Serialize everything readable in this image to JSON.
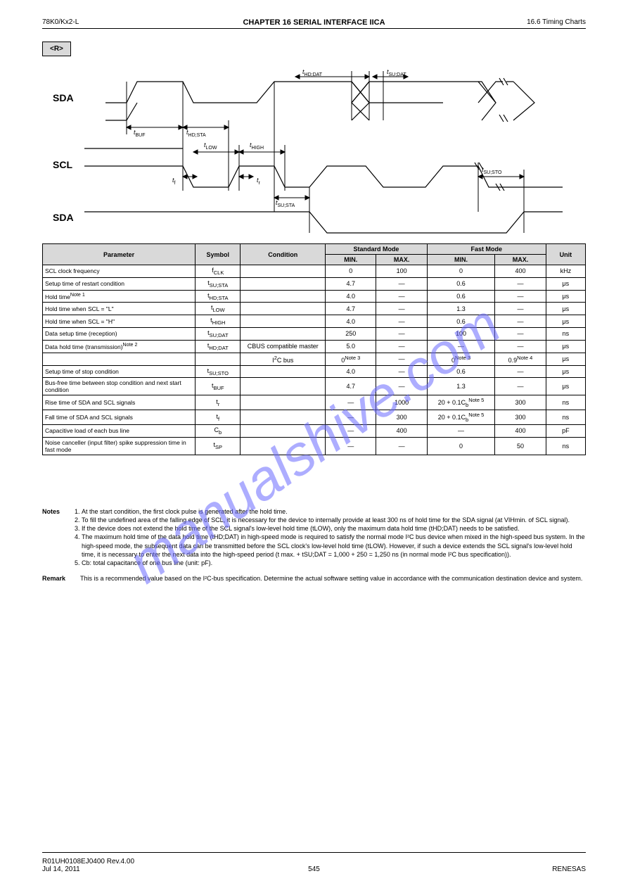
{
  "header": {
    "left": "78K0/Kx2-L",
    "center": "CHAPTER 16 SERIAL INTERFACE IICA",
    "right": "16.6 Timing Charts"
  },
  "footer": {
    "left": "R01UH0108EJ0400 Rev.4.00",
    "center": "",
    "right": "RENESAS",
    "sub": "Jul 14, 2011"
  },
  "pagenum": "545",
  "badge": "<R>",
  "watermark": "manualshive.com",
  "diagram": {
    "bg": "#ffffff",
    "stroke": "#000000",
    "labels": {
      "sda1": "SDA",
      "scl": "SCL",
      "sda2": "SDA",
      "tbuf": "t",
      "tbuf_sub": "BUF",
      "thdsta": "t",
      "thdsta_sub": "HD;STA",
      "tlow": "t",
      "tlow_sub": "LOW",
      "thigh": "t",
      "thigh_sub": "HIGH",
      "tf": "t",
      "tf_sub": "f",
      "tr": "t",
      "tr_sub": "r",
      "thddat": "t",
      "thddat_sub": "HD;DAT",
      "tsudat": "t",
      "tsudat_sub": "SU;DAT",
      "tsusta": "t",
      "tsusta_sub": "SU;STA",
      "tsusto": "t",
      "tsusto_sub": "SU;STO"
    }
  },
  "table": {
    "header": {
      "param": "Parameter",
      "sym": "Symbol",
      "cond": "Condition",
      "std": "Standard Mode",
      "fast": "Fast Mode",
      "unit": "Unit",
      "min": "MIN.",
      "max": "MAX."
    },
    "rows": [
      {
        "p": "SCL clock frequency",
        "s_html": "f<sub>CLK</sub>",
        "c": "",
        "smin": "0",
        "smax": "100",
        "fmin": "0",
        "fmax": "400",
        "u": "kHz"
      },
      {
        "p": "Setup time of restart condition",
        "s_html": "t<sub>SU;STA</sub>",
        "c": "",
        "smin": "4.7",
        "smax": "—",
        "fmin": "0.6",
        "fmax": "—",
        "u": "μs"
      },
      {
        "p": "Hold time<sup>Note 1</sup>",
        "s_html": "t<sub>HD;STA</sub>",
        "c": "",
        "smin": "4.0",
        "smax": "—",
        "fmin": "0.6",
        "fmax": "—",
        "u": "μs"
      },
      {
        "p": "Hold time when SCL = \"L\"",
        "s_html": "t<sub>LOW</sub>",
        "c": "",
        "smin": "4.7",
        "smax": "—",
        "fmin": "1.3",
        "fmax": "—",
        "u": "μs"
      },
      {
        "p": "Hold time when SCL = \"H\"",
        "s_html": "t<sub>HIGH</sub>",
        "c": "",
        "smin": "4.0",
        "smax": "—",
        "fmin": "0.6",
        "fmax": "—",
        "u": "μs"
      },
      {
        "p": "Data setup time (reception)",
        "s_html": "t<sub>SU;DAT</sub>",
        "c": "",
        "smin": "250",
        "smax": "—",
        "fmin": "100",
        "fmax": "—",
        "u": "ns"
      },
      {
        "p": "Data hold time (transmission)<sup>Note 2</sup>",
        "s_html": "t<sub>HD;DAT</sub>",
        "c": "CBUS compatible master",
        "smin": "5.0",
        "smax": "—",
        "fmin": "—",
        "fmax": "—",
        "u": "μs"
      },
      {
        "p": "",
        "s_html": "",
        "c": "I<sup>2</sup>C bus",
        "smin": "0<sup>Note 3</sup>",
        "smax": "—",
        "fmin": "0<sup>Note 3</sup>",
        "fmax": "0.9<sup>Note 4</sup>",
        "u": "μs"
      },
      {
        "p": "Setup time of stop condition",
        "s_html": "t<sub>SU;STO</sub>",
        "c": "",
        "smin": "4.0",
        "smax": "—",
        "fmin": "0.6",
        "fmax": "—",
        "u": "μs"
      },
      {
        "p": "Bus-free time between stop condition and next start condition",
        "s_html": "t<sub>BUF</sub>",
        "c": "",
        "smin": "4.7",
        "smax": "—",
        "fmin": "1.3",
        "fmax": "—",
        "u": "μs"
      },
      {
        "p": "Rise time of SDA and SCL signals",
        "s_html": "t<sub>r</sub>",
        "c": "",
        "smin": "—",
        "smax": "1000",
        "fmin": "20 + 0.1C<sub>b</sub><sup>Note 5</sup>",
        "fmax": "300",
        "u": "ns"
      },
      {
        "p": "Fall time of SDA and SCL signals",
        "s_html": "t<sub>f</sub>",
        "c": "",
        "smin": "—",
        "smax": "300",
        "fmin": "20 + 0.1C<sub>b</sub><sup>Note 5</sup>",
        "fmax": "300",
        "u": "ns"
      },
      {
        "p": "Capacitive load of each bus line",
        "s_html": "C<sub>b</sub>",
        "c": "",
        "smin": "—",
        "smax": "400",
        "fmin": "—",
        "fmax": "400",
        "u": "pF"
      },
      {
        "p": "Noise canceller (input filter) spike suppression time in fast mode",
        "s_html": "t<sub>SP</sub>",
        "c": "",
        "smin": "—",
        "smax": "—",
        "fmin": "0",
        "fmax": "50",
        "u": "ns"
      }
    ]
  },
  "notes": {
    "title": "Notes",
    "items": [
      "At the start condition, the first clock pulse is generated after the hold time.",
      "To fill the undefined area of the falling edge of SCL, it is necessary for the device to internally provide at least 300 ns of hold time for the SDA signal (at VIHmin. of SCL signal).",
      "If the device does not extend the hold time of the SCL signal's low-level hold time (tLOW), only the maximum data hold time (tHD;DAT) needs to be satisfied.",
      "The maximum hold time of the data hold time (tHD;DAT) in high-speed mode is required to satisfy the normal mode I²C bus device when mixed in the high-speed bus system. In the high-speed mode, the subsequent data can be transmitted before the SCL clock's low-level hold time (tLOW). However, if such a device extends the SCL signal's low-level hold time, it is necessary to enter the next data into the high-speed period (t max. + tSU;DAT = 1,000 + 250 = 1,250 ns (in normal mode I²C bus specification)).",
      "Cb: total capacitance of one bus line (unit: pF)."
    ]
  },
  "remark": {
    "title": "Remark",
    "text": "This is a recommended value based on the I²C-bus specification. Determine the actual software setting value in accordance with the communication destination device and system."
  }
}
